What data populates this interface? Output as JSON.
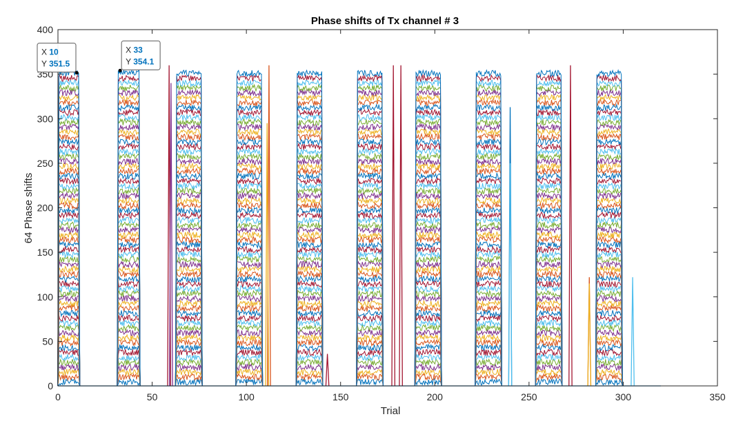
{
  "chart_data": {
    "type": "line",
    "title": "Phase shifts of Tx channel # 3",
    "xlabel": "Trial",
    "ylabel": "64 Phase shifts",
    "xlim": [
      0,
      350
    ],
    "ylim": [
      0,
      400
    ],
    "xticks": [
      0,
      50,
      100,
      150,
      200,
      250,
      300,
      350
    ],
    "yticks": [
      0,
      50,
      100,
      150,
      200,
      250,
      300,
      350,
      400
    ],
    "grid": false,
    "series_count": 64,
    "color_order": [
      "#0072BD",
      "#D95319",
      "#EDB120",
      "#7E2F8E",
      "#77AC30",
      "#4DBEEE",
      "#A2142F"
    ],
    "bands": [
      {
        "start": 0.5,
        "end": 11
      },
      {
        "start": 32,
        "end": 43
      },
      {
        "start": 63,
        "end": 76
      },
      {
        "start": 95,
        "end": 108
      },
      {
        "start": 127,
        "end": 140
      },
      {
        "start": 159,
        "end": 172
      },
      {
        "start": 190,
        "end": 203
      },
      {
        "start": 222,
        "end": 235
      },
      {
        "start": 254,
        "end": 267
      },
      {
        "start": 286,
        "end": 299
      }
    ],
    "spikes": [
      {
        "x": 59,
        "y": 360,
        "color": "#A2142F"
      },
      {
        "x": 60,
        "y": 340,
        "color": "#7E2F8E"
      },
      {
        "x": 112,
        "y": 360,
        "color": "#D95319"
      },
      {
        "x": 111,
        "y": 295,
        "color": "#EDB120"
      },
      {
        "x": 143,
        "y": 36,
        "color": "#A2142F"
      },
      {
        "x": 178,
        "y": 360,
        "color": "#A2142F"
      },
      {
        "x": 182,
        "y": 360,
        "color": "#A2142F"
      },
      {
        "x": 240,
        "y": 313,
        "color": "#0072BD"
      },
      {
        "x": 240,
        "y": 250,
        "color": "#4DBEEE"
      },
      {
        "x": 272,
        "y": 360,
        "color": "#A2142F"
      },
      {
        "x": 282,
        "y": 122,
        "color": "#D95319"
      },
      {
        "x": 282,
        "y": 115,
        "color": "#EDB120"
      },
      {
        "x": 305,
        "y": 122,
        "color": "#4DBEEE"
      }
    ],
    "baseline_end": 320,
    "datatips": [
      {
        "x_label": "X",
        "x_value": "10",
        "y_label": "Y",
        "y_value": "351.5",
        "x": 10,
        "y": 351.5
      },
      {
        "x_label": "X",
        "x_value": "33",
        "y_label": "Y",
        "y_value": "354.1",
        "x": 33,
        "y": 354.1
      }
    ]
  }
}
